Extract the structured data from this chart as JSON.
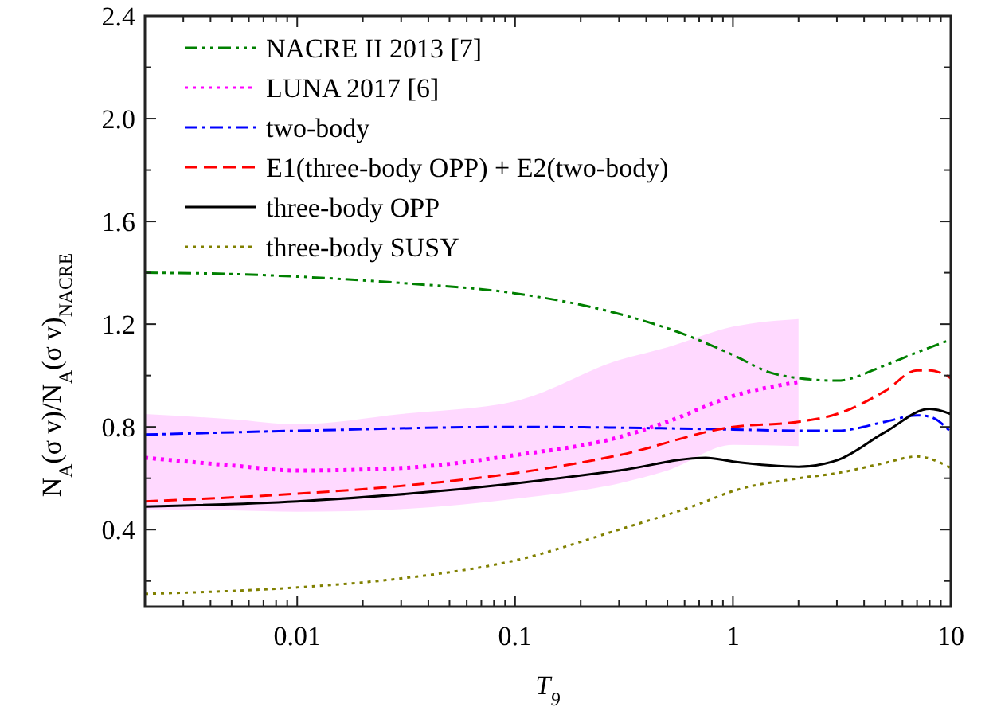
{
  "chart_data": {
    "type": "line",
    "xlabel": "T$_{9}$",
    "ylabel": "N$_{A}$(σ v)/N$_{A}$(σ v)$_{NACRE}$",
    "log": "x",
    "xlim": [
      0.002,
      10
    ],
    "ylim": [
      0.1,
      2.4
    ],
    "xticks": [
      {
        "value": 0.002,
        "label": null
      },
      {
        "value": 0.003,
        "label": null
      },
      {
        "value": 0.004,
        "label": null
      },
      {
        "value": 0.005,
        "label": null
      },
      {
        "value": 0.006,
        "label": null
      },
      {
        "value": 0.007,
        "label": null
      },
      {
        "value": 0.008,
        "label": null
      },
      {
        "value": 0.009,
        "label": null
      },
      0.01,
      {
        "value": 0.02,
        "label": null
      },
      {
        "value": 0.03,
        "label": null
      },
      {
        "value": 0.04,
        "label": null
      },
      {
        "value": 0.05,
        "label": null
      },
      {
        "value": 0.06,
        "label": null
      },
      {
        "value": 0.07,
        "label": null
      },
      {
        "value": 0.08,
        "label": null
      },
      {
        "value": 0.09,
        "label": null
      },
      0.1,
      {
        "value": 0.2,
        "label": null
      },
      {
        "value": 0.3,
        "label": null
      },
      {
        "value": 0.4,
        "label": null
      },
      {
        "value": 0.5,
        "label": null
      },
      {
        "value": 0.6,
        "label": null
      },
      {
        "value": 0.7,
        "label": null
      },
      {
        "value": 0.8,
        "label": null
      },
      {
        "value": 0.9,
        "label": null
      },
      1,
      {
        "value": 2,
        "label": null
      },
      {
        "value": 3,
        "label": null
      },
      {
        "value": 4,
        "label": null
      },
      {
        "value": 5,
        "label": null
      },
      {
        "value": 6,
        "label": null
      },
      {
        "value": 7,
        "label": null
      },
      {
        "value": 8,
        "label": null
      },
      {
        "value": 9,
        "label": null
      },
      10
    ],
    "yticks": [
      {
        "value": 0.2,
        "label": null
      },
      0.4,
      {
        "value": 0.6,
        "label": null
      },
      0.8,
      {
        "value": 1.0,
        "label": null
      },
      1.2,
      {
        "value": 1.4,
        "label": null
      },
      1.6,
      {
        "value": 1.8,
        "label": null
      },
      {
        "value": 2,
        "label": "2.0"
      },
      {
        "value": 2.2,
        "label": null
      },
      2.4
    ],
    "grid": false,
    "legend": "top left",
    "series": [
      {
        "name": "NACRE II 2013 [7]",
        "color": "#008000",
        "line_style": "dashdotdot",
        "x": [
          0.002,
          0.005,
          0.01,
          0.03,
          0.1,
          0.3,
          0.6,
          1,
          1.5,
          2,
          3,
          5,
          7,
          10
        ],
        "values": [
          1.4,
          1.395,
          1.385,
          1.36,
          1.32,
          1.24,
          1.16,
          1.08,
          1.01,
          0.99,
          0.98,
          1.04,
          1.09,
          1.14
        ]
      },
      {
        "name": "LUNA 2017 [6]",
        "color": "#ff00ff",
        "line_style": "dotted",
        "x": [
          0.002,
          0.005,
          0.01,
          0.03,
          0.1,
          0.3,
          0.5,
          1,
          2
        ],
        "values": [
          0.68,
          0.65,
          0.63,
          0.64,
          0.69,
          0.76,
          0.82,
          0.92,
          0.975
        ],
        "lower": [
          0.48,
          0.475,
          0.47,
          0.48,
          0.52,
          0.58,
          0.63,
          0.73,
          0.725
        ],
        "upper": [
          0.85,
          0.83,
          0.81,
          0.85,
          0.9,
          1.06,
          1.11,
          1.19,
          1.22
        ]
      },
      {
        "name": "two-body",
        "color": "#0000ff",
        "line_style": "dashdot",
        "x": [
          0.002,
          0.01,
          0.1,
          1,
          2,
          3,
          5,
          7,
          8,
          10
        ],
        "values": [
          0.77,
          0.785,
          0.8,
          0.79,
          0.785,
          0.785,
          0.82,
          0.845,
          0.84,
          0.78
        ]
      },
      {
        "name": "E1(three-body OPP) + E2(two-body)",
        "color": "#ff0000",
        "line_style": "dashed",
        "x": [
          0.002,
          0.01,
          0.03,
          0.1,
          0.3,
          1,
          2,
          3,
          5,
          7,
          8,
          10
        ],
        "values": [
          0.51,
          0.54,
          0.57,
          0.62,
          0.69,
          0.8,
          0.82,
          0.85,
          0.94,
          1.02,
          1.02,
          0.99
        ]
      },
      {
        "name": "three-body OPP",
        "color": "#000000",
        "line_style": "solid",
        "x": [
          0.002,
          0.01,
          0.1,
          0.3,
          0.75,
          1,
          2,
          3,
          5,
          8,
          10
        ],
        "values": [
          0.49,
          0.51,
          0.58,
          0.63,
          0.68,
          0.665,
          0.645,
          0.67,
          0.78,
          0.87,
          0.85
        ]
      },
      {
        "name": "three-body SUSY",
        "color": "#808000",
        "line_style": "dotted",
        "x": [
          0.002,
          0.01,
          0.03,
          0.1,
          0.3,
          0.7,
          1,
          2,
          3,
          5,
          7,
          10
        ],
        "values": [
          0.15,
          0.175,
          0.21,
          0.28,
          0.4,
          0.5,
          0.55,
          0.6,
          0.62,
          0.66,
          0.685,
          0.64
        ]
      }
    ]
  }
}
